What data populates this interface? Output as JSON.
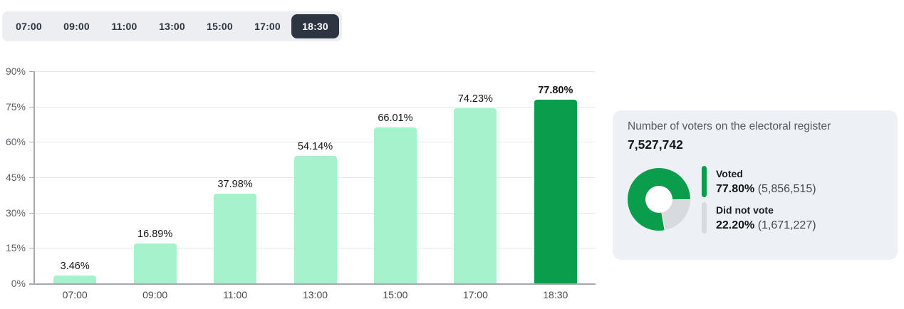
{
  "colors": {
    "bar_light": "#a6f2cc",
    "bar_highlight": "#0a9d4b",
    "donut_green": "#0a9d4b",
    "donut_gray": "#d8dbde",
    "selector_bg": "#eceef1",
    "selected_tab_bg": "#2d3543",
    "card_bg": "#edf0f4"
  },
  "time_selector": {
    "options": [
      "07:00",
      "09:00",
      "11:00",
      "13:00",
      "15:00",
      "17:00",
      "18:30"
    ],
    "selected": "18:30"
  },
  "chart_data": [
    {
      "type": "bar",
      "categories": [
        "07:00",
        "09:00",
        "11:00",
        "13:00",
        "15:00",
        "17:00",
        "18:30"
      ],
      "values": [
        3.46,
        16.89,
        37.98,
        54.14,
        66.01,
        74.23,
        77.8
      ],
      "labels": [
        "3.46%",
        "16.89%",
        "37.98%",
        "54.14%",
        "66.01%",
        "74.23%",
        "77.80%"
      ],
      "highlight_category": "18:30",
      "title": "",
      "xlabel": "",
      "ylabel": "",
      "ylim": [
        0,
        90
      ],
      "yticks": [
        0,
        15,
        30,
        45,
        60,
        75,
        90
      ],
      "ytick_labels": [
        "0%",
        "15%",
        "30%",
        "45%",
        "60%",
        "75%",
        "90%"
      ],
      "grid": true
    },
    {
      "type": "pie",
      "donut": true,
      "segments": [
        {
          "label": "Voted",
          "pct": 77.8,
          "pct_label": "77.80%",
          "count_label": "(5,856,515)"
        },
        {
          "label": "Did not vote",
          "pct": 22.2,
          "pct_label": "22.20%",
          "count_label": "(1,671,227)"
        }
      ],
      "legend_position": "right"
    }
  ],
  "card": {
    "title": "Number of voters on the electoral register",
    "total": "7,527,742"
  }
}
